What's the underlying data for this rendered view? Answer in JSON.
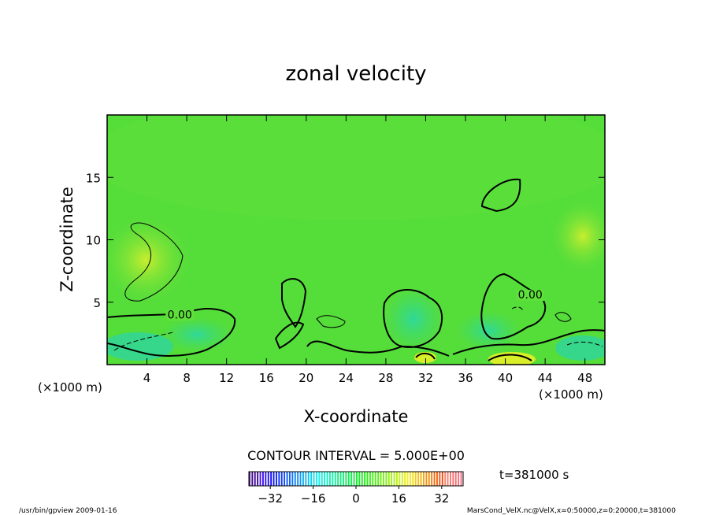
{
  "chart_data": {
    "type": "heatmap",
    "title": "zonal velocity",
    "xlabel": "X-coordinate",
    "ylabel": "Z-coordinate",
    "x_unit": "(×1000 m)",
    "x_unit_left": "(×1000 m)",
    "xlim": [
      0,
      50
    ],
    "ylim": [
      0,
      20
    ],
    "x_ticks": [
      4,
      8,
      12,
      16,
      20,
      24,
      28,
      32,
      36,
      40,
      44,
      48
    ],
    "y_ticks": [
      5,
      10,
      15
    ],
    "contour_labels": [
      {
        "text": "0.00",
        "x": 7.3,
        "z": 3.7
      },
      {
        "text": "0.00",
        "x": 42.5,
        "z": 5.3
      }
    ],
    "contour_interval": "CONTOUR INTERVAL = 5.000E+00",
    "colorbar": {
      "min": -40,
      "max": 40,
      "ticks": [
        -32,
        -16,
        0,
        16,
        32
      ]
    },
    "time_label": "t=381000 s",
    "footer_left": "/usr/bin/gpview   2009-01-16",
    "footer_right": "MarsCond_VelX.nc@VelX,x=0:50000,z=0:20000,t=381000"
  }
}
